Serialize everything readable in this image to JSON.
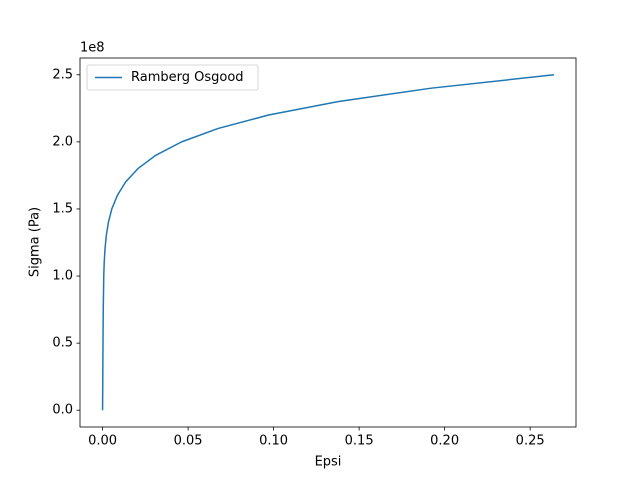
{
  "chart_data": {
    "type": "line",
    "x_label": "Epsi",
    "y_label": "Sigma (Pa)",
    "y_offset_label": "1e8",
    "x": [
      0,
      0.000125,
      0.00025,
      0.00039,
      0.00069,
      0.00095,
      0.0014,
      0.00216,
      0.0034,
      0.0054,
      0.0086,
      0.0134,
      0.0206,
      0.0311,
      0.0462,
      0.0676,
      0.0971,
      0.1376,
      0.1921,
      0.264
    ],
    "series": [
      {
        "name": "Ramberg Osgood",
        "color": "#1f77b4",
        "values": [
          0,
          0.25,
          0.5,
          0.75,
          1.0,
          1.1,
          1.2,
          1.3,
          1.4,
          1.5,
          1.6,
          1.7,
          1.8,
          1.9,
          2.0,
          2.1,
          2.2,
          2.3,
          2.4,
          2.5
        ]
      }
    ],
    "xlim": [
      -0.0132,
      0.2768
    ],
    "ylim": [
      -0.125,
      2.625
    ],
    "xticks": [
      {
        "value": 0,
        "label": "0.00"
      },
      {
        "value": 0.05,
        "label": "0.05"
      },
      {
        "value": 0.1,
        "label": "0.10"
      },
      {
        "value": 0.15,
        "label": "0.15"
      },
      {
        "value": 0.2,
        "label": "0.20"
      },
      {
        "value": 0.25,
        "label": "0.25"
      }
    ],
    "yticks": [
      {
        "value": 0,
        "label": "0.0"
      },
      {
        "value": 0.5,
        "label": "0.5"
      },
      {
        "value": 1,
        "label": "1.0"
      },
      {
        "value": 1.5,
        "label": "1.5"
      },
      {
        "value": 2,
        "label": "2.0"
      },
      {
        "value": 2.5,
        "label": "2.5"
      }
    ],
    "legend": "upper left"
  }
}
